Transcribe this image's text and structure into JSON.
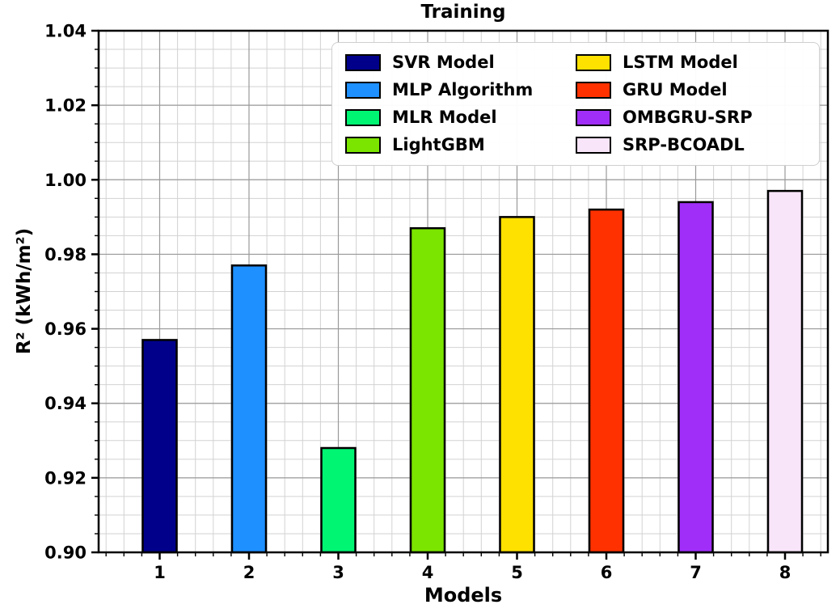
{
  "chart_data": {
    "type": "bar",
    "title": "Training",
    "xlabel": "Models",
    "ylabel": "R² (kWh/m²)",
    "categories": [
      "1",
      "2",
      "3",
      "4",
      "5",
      "6",
      "7",
      "8"
    ],
    "series": [
      {
        "name": "SVR Model",
        "value": 0.957,
        "color": "#00008B"
      },
      {
        "name": "MLP Algorithm",
        "value": 0.977,
        "color": "#1E90FF"
      },
      {
        "name": "MLR Model",
        "value": 0.928,
        "color": "#00F573"
      },
      {
        "name": "LightGBM",
        "value": 0.987,
        "color": "#7CE500"
      },
      {
        "name": "LSTM Model",
        "value": 0.99,
        "color": "#FFE100"
      },
      {
        "name": "GRU Model",
        "value": 0.992,
        "color": "#FF3100"
      },
      {
        "name": "OMBGRU-SRP",
        "value": 0.994,
        "color": "#A02EF8"
      },
      {
        "name": "SRP-BCOADL",
        "value": 0.997,
        "color": "#F8E5F9"
      }
    ],
    "ylim": [
      0.9,
      1.04
    ],
    "yticks": [
      "0.90",
      "0.92",
      "0.94",
      "0.96",
      "0.98",
      "1.00",
      "1.02",
      "1.04"
    ],
    "y_minor_step": 0.005,
    "x_minor_per_major": 5,
    "grid": "major-and-minor",
    "legend_position": "upper-center",
    "legend_columns": 2,
    "colors": {
      "axis": "#000000",
      "major_grid": "#9a9a9a",
      "minor_grid": "#d2d2d2",
      "bar_edge": "#000000",
      "background": "#ffffff",
      "legend_border": "#cfcfcf"
    }
  }
}
